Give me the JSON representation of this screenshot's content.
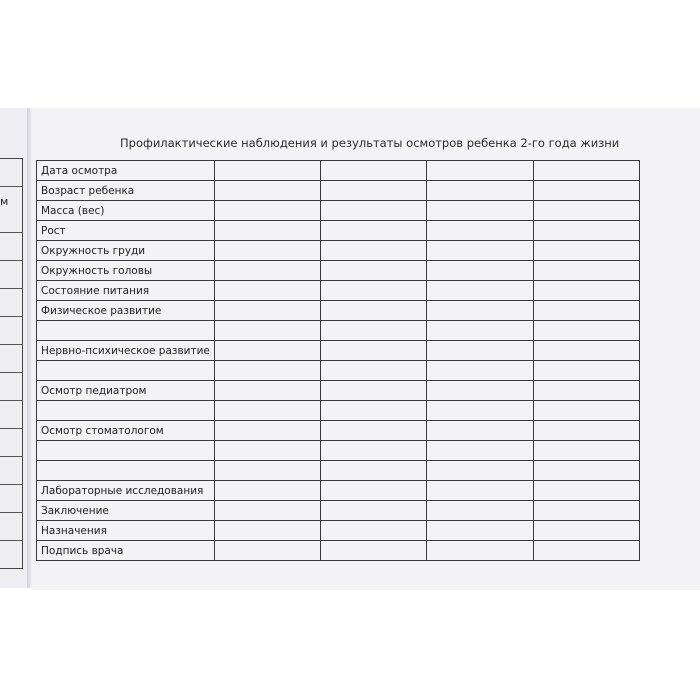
{
  "left_page": {
    "fragment": "м"
  },
  "title": "Профилактические наблюдения и результаты осмотров ребенка 2-го года жизни",
  "rows": [
    "Дата осмотра",
    "Возраст ребенка",
    "Масса (вес)",
    "Рост",
    "Окружность груди",
    "Окружность головы",
    "Состояние питания",
    "Физическое развитие",
    "",
    "Нервно-психическое развитие",
    "",
    "Осмотр педиатром",
    "",
    "Осмотр стоматологом",
    "",
    "",
    "Лабораторные исследования",
    "Заключение",
    "Назначения",
    "Подпись врача"
  ],
  "blank_columns": 4
}
